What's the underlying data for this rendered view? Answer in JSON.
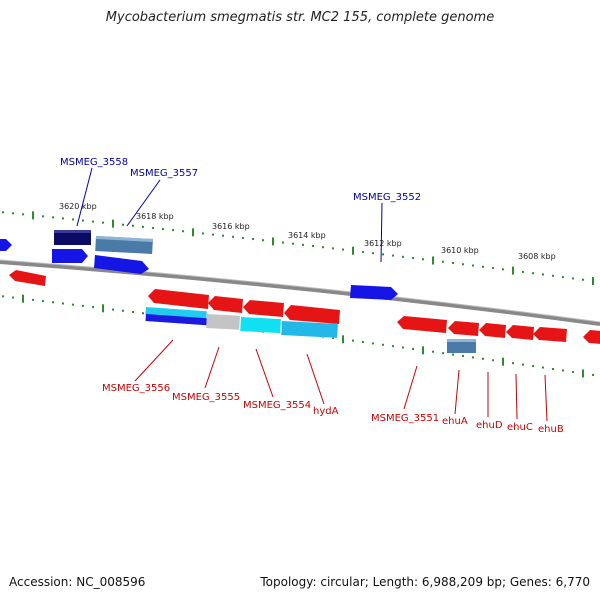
{
  "title": "Mycobacterium smegmatis str. MC2 155, complete genome",
  "footer": {
    "accession": "Accession: NC_008596",
    "summary": "Topology: circular; Length: 6,988,209 bp; Genes: 6,770"
  },
  "colors": {
    "forward": "#1515e6",
    "reverse": "#e61515",
    "backbone": "#888888",
    "tick": "#2e8b2e",
    "forward_label": "#0000aa",
    "reverse_label": "#cc0000"
  },
  "scale_labels": [
    "3620 kbp",
    "3618 kbp",
    "3616 kbp",
    "3614 kbp",
    "3612 kbp",
    "3610 kbp",
    "3608 kbp"
  ],
  "forward_labels": [
    "MSMEG_3558",
    "MSMEG_3557",
    "MSMEG_3552"
  ],
  "reverse_labels": [
    "MSMEG_3556",
    "MSMEG_3555",
    "MSMEG_3554",
    "hydA",
    "MSMEG_3551",
    "ehuA",
    "ehuD",
    "ehuC",
    "ehuB"
  ]
}
